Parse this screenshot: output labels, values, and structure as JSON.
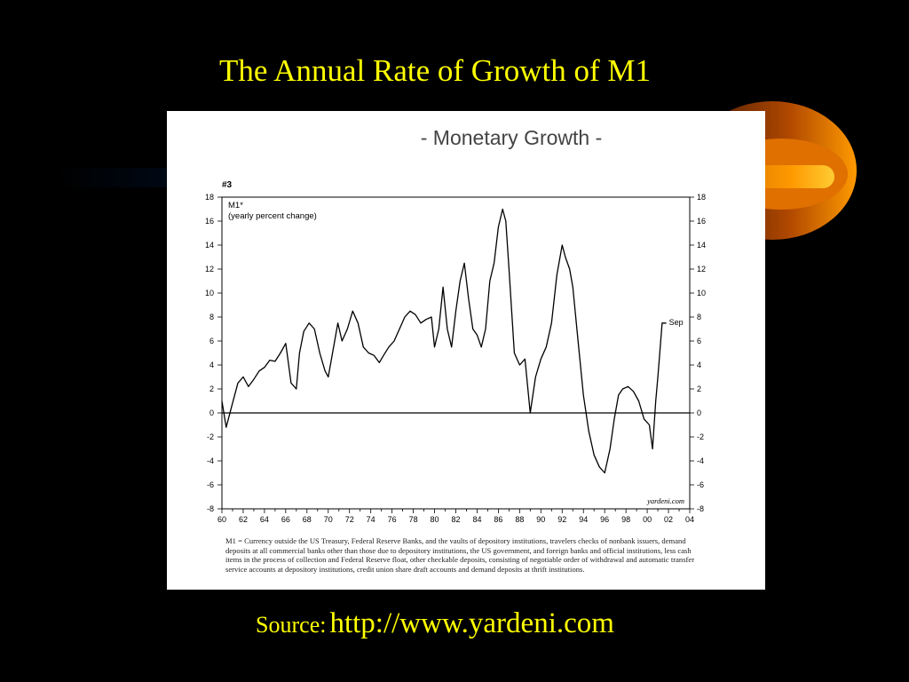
{
  "slide": {
    "title": "The Annual Rate of Growth of M1",
    "source_label": "Source:",
    "source_url": "http://www.yardeni.com",
    "accent_color": "#ffff00",
    "background_color": "#000000"
  },
  "chart_data": {
    "type": "line",
    "title": "- Monetary Growth -",
    "chart_number": "#3",
    "series_label": "M1*",
    "series_sublabel": "(yearly percent change)",
    "latest_annotation": "Sep",
    "watermark": "yardeni.com",
    "ylim": [
      -8,
      18
    ],
    "xlim": [
      1960,
      2004
    ],
    "y_ticks": [
      18,
      16,
      14,
      12,
      10,
      8,
      6,
      4,
      2,
      0,
      -2,
      -4,
      -6,
      -8
    ],
    "x_tick_labels": [
      "60",
      "62",
      "64",
      "66",
      "68",
      "70",
      "72",
      "74",
      "76",
      "78",
      "80",
      "82",
      "84",
      "86",
      "88",
      "90",
      "92",
      "94",
      "96",
      "98",
      "00",
      "02",
      "04"
    ],
    "zero_line": true,
    "grid": false,
    "series": [
      {
        "x": [
          1960.0,
          1960.4,
          1960.9,
          1961.5,
          1962.0,
          1962.5,
          1963.0,
          1963.5,
          1964.0,
          1964.5,
          1965.0,
          1965.5,
          1966.0,
          1966.5,
          1967.0,
          1967.3,
          1967.7,
          1968.2,
          1968.7,
          1969.2,
          1969.7,
          1970.0,
          1970.4,
          1970.9,
          1971.3,
          1971.8,
          1972.3,
          1972.8,
          1973.3,
          1973.8,
          1974.3,
          1974.8,
          1975.2,
          1975.7,
          1976.2,
          1976.7,
          1977.2,
          1977.7,
          1978.2,
          1978.7,
          1979.2,
          1979.7,
          1980.0,
          1980.4,
          1980.8,
          1981.2,
          1981.6,
          1982.0,
          1982.4,
          1982.8,
          1983.2,
          1983.6,
          1984.0,
          1984.4,
          1984.8,
          1985.2,
          1985.6,
          1986.0,
          1986.4,
          1986.7,
          1987.0,
          1987.5,
          1988.0,
          1988.5,
          1989.0,
          1989.5,
          1990.0,
          1990.5,
          1991.0,
          1991.5,
          1992.0,
          1992.3,
          1992.7,
          1993.0,
          1993.5,
          1994.0,
          1994.5,
          1995.0,
          1995.5,
          1996.0,
          1996.5,
          1996.9,
          1997.3,
          1997.7,
          1998.2,
          1998.7,
          1999.2,
          1999.7,
          2000.2,
          2000.5,
          2000.8,
          2001.0,
          2001.4,
          2001.8
        ],
        "values": [
          1.0,
          -1.2,
          0.5,
          2.5,
          3.0,
          2.2,
          2.8,
          3.5,
          3.8,
          4.4,
          4.3,
          5.0,
          5.8,
          2.5,
          2.0,
          5.0,
          6.8,
          7.5,
          7.0,
          5.0,
          3.5,
          3.0,
          5.0,
          7.5,
          6.0,
          7.0,
          8.5,
          7.5,
          5.5,
          5.0,
          4.8,
          4.2,
          4.8,
          5.5,
          6.0,
          7.0,
          8.0,
          8.5,
          8.2,
          7.5,
          7.8,
          8.0,
          5.5,
          7.0,
          10.5,
          7.0,
          5.5,
          8.5,
          11.0,
          12.5,
          9.5,
          7.0,
          6.5,
          5.5,
          7.0,
          11.0,
          12.5,
          15.5,
          17.0,
          16.0,
          12.0,
          5.0,
          4.0,
          4.5,
          0.0,
          3.0,
          4.5,
          5.5,
          7.5,
          11.5,
          14.0,
          13.0,
          12.0,
          10.5,
          6.0,
          1.5,
          -1.5,
          -3.5,
          -4.5,
          -5.0,
          -3.0,
          -0.5,
          1.5,
          2.0,
          2.2,
          1.8,
          1.0,
          -0.5,
          -1.0,
          -3.0,
          1.0,
          3.0,
          7.5,
          7.5
        ]
      }
    ]
  },
  "footnote": "M1 = Currency outside the US Treasury, Federal Reserve Banks, and the vaults of depository institutions, travelers checks of nonbank issuers, demand deposits at all commercial banks other than those due to depository institutions, the US government, and foreign banks and official institutions, less cash items in the process of collection and Federal Reserve float, other checkable deposits, consisting of negotiable order of withdrawal and automatic transfer service accounts at depository institutions, credit union share draft accounts and demand deposits at thrift institutions."
}
